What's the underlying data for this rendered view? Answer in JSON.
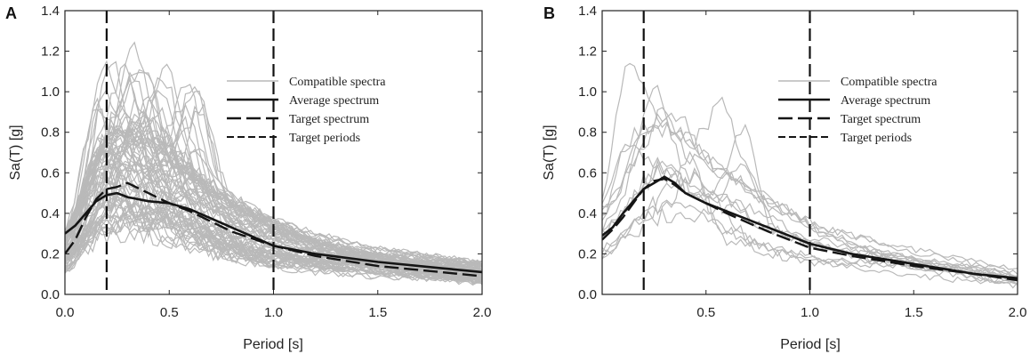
{
  "chart_data": [
    {
      "type": "line",
      "panel_label": "A",
      "xlabel": "Period [s]",
      "ylabel": "Sa(T) [g]",
      "xlim": [
        0.0,
        2.0
      ],
      "ylim": [
        0.0,
        1.4
      ],
      "xticks": [
        "0.0",
        "0.5",
        "1.0",
        "1.5",
        "2.0"
      ],
      "yticks": [
        "0.0",
        "0.2",
        "0.4",
        "0.6",
        "0.8",
        "1.0",
        "1.2",
        "1.4"
      ],
      "target_periods": [
        0.2,
        1.0
      ],
      "legend": [
        "Compatible spectra",
        "Average spectrum",
        "Target spectrum",
        "Target periods"
      ],
      "legend_position": "upper-right",
      "compatible_spectra_count": 70,
      "series": [
        {
          "name": "Average spectrum",
          "x": [
            0.0,
            0.05,
            0.1,
            0.15,
            0.2,
            0.25,
            0.3,
            0.4,
            0.5,
            0.6,
            0.8,
            1.0,
            1.2,
            1.5,
            1.8,
            2.0
          ],
          "values": [
            0.3,
            0.34,
            0.4,
            0.46,
            0.49,
            0.5,
            0.48,
            0.46,
            0.45,
            0.42,
            0.33,
            0.24,
            0.2,
            0.16,
            0.13,
            0.11
          ]
        },
        {
          "name": "Target spectrum",
          "x": [
            0.0,
            0.05,
            0.1,
            0.15,
            0.2,
            0.25,
            0.3,
            0.4,
            0.5,
            0.6,
            0.8,
            1.0,
            1.2,
            1.5,
            1.8,
            2.0
          ],
          "values": [
            0.2,
            0.27,
            0.38,
            0.47,
            0.52,
            0.53,
            0.55,
            0.5,
            0.45,
            0.41,
            0.31,
            0.24,
            0.19,
            0.14,
            0.11,
            0.09
          ]
        }
      ]
    },
    {
      "type": "line",
      "panel_label": "B",
      "xlabel": "Period [s]",
      "ylabel": "Sa(T) [g]",
      "xlim": [
        0.0,
        2.0
      ],
      "ylim": [
        0.0,
        1.4
      ],
      "xticks": [
        "0.5",
        "1.0",
        "1.5",
        "2.0"
      ],
      "yticks": [
        "0.0",
        "0.2",
        "0.4",
        "0.6",
        "0.8",
        "1.0",
        "1.2",
        "1.4"
      ],
      "target_periods": [
        0.2,
        1.0
      ],
      "legend": [
        "Compatible spectra",
        "Average spectrum",
        "Target spectrum",
        "Target periods"
      ],
      "legend_position": "upper-right",
      "compatible_spectra_count": 14,
      "series": [
        {
          "name": "Average spectrum",
          "x": [
            0.0,
            0.05,
            0.1,
            0.15,
            0.2,
            0.25,
            0.3,
            0.35,
            0.4,
            0.5,
            0.6,
            0.8,
            1.0,
            1.2,
            1.5,
            1.8,
            2.0
          ],
          "values": [
            0.29,
            0.33,
            0.4,
            0.46,
            0.52,
            0.55,
            0.58,
            0.55,
            0.5,
            0.45,
            0.41,
            0.33,
            0.25,
            0.2,
            0.15,
            0.1,
            0.08
          ]
        },
        {
          "name": "Target spectrum",
          "x": [
            0.0,
            0.05,
            0.1,
            0.15,
            0.2,
            0.25,
            0.3,
            0.35,
            0.4,
            0.5,
            0.6,
            0.8,
            1.0,
            1.2,
            1.5,
            1.8,
            2.0
          ],
          "values": [
            0.27,
            0.32,
            0.38,
            0.45,
            0.52,
            0.56,
            0.57,
            0.54,
            0.5,
            0.45,
            0.4,
            0.31,
            0.23,
            0.19,
            0.14,
            0.1,
            0.07
          ]
        }
      ]
    }
  ],
  "colors": {
    "compatible": "#b9b9b9",
    "average": "#151515",
    "target": "#151515",
    "axes": "#222222"
  }
}
